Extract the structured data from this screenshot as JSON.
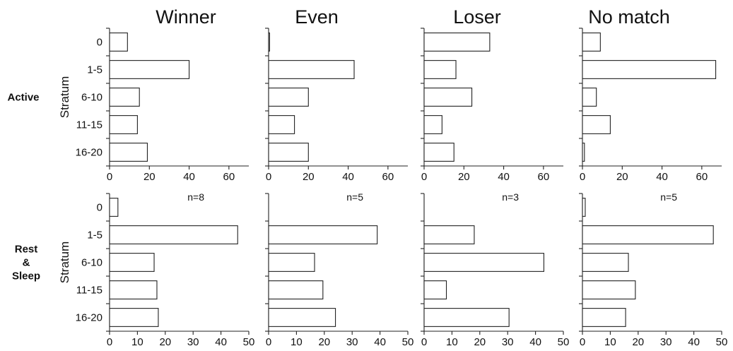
{
  "chart_data": {
    "type": "bar",
    "orientation": "horizontal",
    "columns": [
      "Winner",
      "Even",
      "Loser",
      "No match"
    ],
    "ylabel": "Stratum",
    "categories": [
      "0",
      "1-5",
      "6-10",
      "11-15",
      "16-20"
    ],
    "rows": [
      {
        "label_lines": [
          "Active"
        ],
        "xticks": [
          "0",
          "20",
          "40",
          "60"
        ],
        "xlim": [
          0,
          70
        ],
        "panels": [
          {
            "column": "Winner",
            "n": "",
            "values": [
              9,
              40,
              15,
              14,
              19
            ]
          },
          {
            "column": "Even",
            "n": "",
            "values": [
              0.5,
              43,
              20,
              13,
              20
            ]
          },
          {
            "column": "Loser",
            "n": "",
            "values": [
              33,
              16,
              24,
              9,
              15
            ]
          },
          {
            "column": "No match",
            "n": "",
            "values": [
              9,
              67,
              7,
              14,
              1
            ]
          }
        ]
      },
      {
        "label_lines": [
          "Rest",
          "&",
          "Sleep"
        ],
        "xticks": [
          "0",
          "10",
          "20",
          "30",
          "40",
          "50"
        ],
        "xlim": [
          0,
          50
        ],
        "panels": [
          {
            "column": "Winner",
            "n": "n=8",
            "values": [
              3,
              46,
              16,
              17,
              17.5
            ]
          },
          {
            "column": "Even",
            "n": "n=5",
            "values": [
              0,
              39,
              16.5,
              19.5,
              24
            ]
          },
          {
            "column": "Loser",
            "n": "n=3",
            "values": [
              0,
              18,
              43,
              8,
              30.5
            ]
          },
          {
            "column": "No match",
            "n": "n=5",
            "values": [
              1,
              47,
              16.5,
              19,
              15.5
            ]
          }
        ]
      }
    ]
  }
}
